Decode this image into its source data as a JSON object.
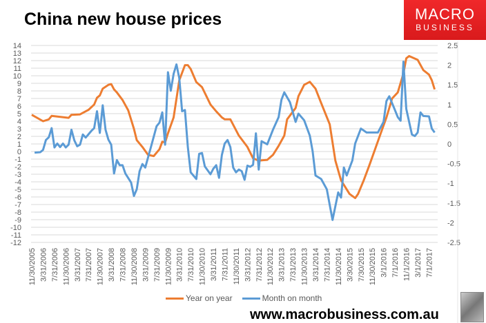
{
  "chart_data": {
    "type": "line",
    "title": "China new house prices",
    "y_left": {
      "min": -12,
      "max": 14,
      "step": 1
    },
    "y_right": {
      "min": -2.5,
      "max": 2.5,
      "step": 0.5
    },
    "grid": true,
    "legend_position": "bottom",
    "x_tick_labels": [
      "11/30/2005",
      "3/31/2006",
      "7/31/2006",
      "11/30/2006",
      "3/31/2007",
      "7/31/2007",
      "11/30/2007",
      "3/31/2008",
      "7/31/2008",
      "11/30/2008",
      "3/31/2009",
      "7/31/2009",
      "11/30/2009",
      "3/31/2010",
      "7/31/2010",
      "11/30/2010",
      "3/31/2011",
      "7/31/2011",
      "11/30/2011",
      "3/31/2012",
      "7/31/2012",
      "11/30/2012",
      "3/31/2013",
      "7/31/2013",
      "11/30/2013",
      "3/31/2014",
      "7/31/2014",
      "11/30/2014",
      "3/30/2015",
      "7/30/2015",
      "11/30/2015",
      "3/1/2016",
      "7/1/2016",
      "11/1/2016",
      "3/1/2017",
      "7/1/2017"
    ],
    "series": [
      {
        "name": "Year on year",
        "axis": "left",
        "color": "#ed7d31",
        "points": [
          [
            "2005-11",
            4.85
          ],
          [
            "2006-03",
            4.0
          ],
          [
            "2006-05",
            4.25
          ],
          [
            "2006-06",
            4.7
          ],
          [
            "2006-12",
            4.45
          ],
          [
            "2007-01",
            4.85
          ],
          [
            "2007-04",
            4.9
          ],
          [
            "2007-07",
            5.5
          ],
          [
            "2007-09",
            6.2
          ],
          [
            "2007-10",
            7.1
          ],
          [
            "2007-11",
            7.4
          ],
          [
            "2007-12",
            8.3
          ],
          [
            "2008-02",
            8.8
          ],
          [
            "2008-03",
            8.9
          ],
          [
            "2008-04",
            8.2
          ],
          [
            "2008-05",
            7.8
          ],
          [
            "2008-07",
            6.8
          ],
          [
            "2008-09",
            5.45
          ],
          [
            "2008-11",
            3.0
          ],
          [
            "2008-12",
            1.5
          ],
          [
            "2009-02",
            0.6
          ],
          [
            "2009-04",
            -0.45
          ],
          [
            "2009-06",
            -0.6
          ],
          [
            "2009-08",
            0.3
          ],
          [
            "2009-09",
            1.3
          ],
          [
            "2009-10",
            1.2
          ],
          [
            "2009-11",
            2.4
          ],
          [
            "2010-01",
            4.5
          ],
          [
            "2010-03",
            9.4
          ],
          [
            "2010-05",
            11.4
          ],
          [
            "2010-06",
            11.4
          ],
          [
            "2010-07",
            10.9
          ],
          [
            "2010-09",
            9.15
          ],
          [
            "2010-11",
            8.5
          ],
          [
            "2011-02",
            6.2
          ],
          [
            "2011-04",
            5.3
          ],
          [
            "2011-06",
            4.5
          ],
          [
            "2011-07",
            4.25
          ],
          [
            "2011-09",
            4.25
          ],
          [
            "2011-12",
            2.1
          ],
          [
            "2012-03",
            0.6
          ],
          [
            "2012-05",
            -0.9
          ],
          [
            "2012-07",
            -1.2
          ],
          [
            "2012-10",
            -1.1
          ],
          [
            "2012-12",
            -0.45
          ],
          [
            "2013-02",
            0.75
          ],
          [
            "2013-04",
            2.1
          ],
          [
            "2013-05",
            4.25
          ],
          [
            "2013-08",
            5.75
          ],
          [
            "2013-09",
            7.3
          ],
          [
            "2013-11",
            8.8
          ],
          [
            "2014-01",
            9.2
          ],
          [
            "2014-03",
            8.3
          ],
          [
            "2014-05",
            6.4
          ],
          [
            "2014-08",
            3.6
          ],
          [
            "2014-10",
            -1.2
          ],
          [
            "2014-12",
            -3.8
          ],
          [
            "2015-03",
            -5.6
          ],
          [
            "2015-05",
            -6.15
          ],
          [
            "2015-06",
            -5.6
          ],
          [
            "2015-08",
            -3.8
          ],
          [
            "2015-10",
            -1.8
          ],
          [
            "2015-12",
            0.3
          ],
          [
            "2016-02",
            2.4
          ],
          [
            "2016-04",
            4.5
          ],
          [
            "2016-06",
            7.0
          ],
          [
            "2016-08",
            7.8
          ],
          [
            "2016-10",
            10.3
          ],
          [
            "2016-11",
            12.3
          ],
          [
            "2016-12",
            12.6
          ],
          [
            "2017-03",
            12.1
          ],
          [
            "2017-05",
            10.75
          ],
          [
            "2017-07",
            10.15
          ],
          [
            "2017-08",
            9.4
          ],
          [
            "2017-09",
            8.2
          ]
        ]
      },
      {
        "name": "Month on month",
        "axis": "right",
        "color": "#5b9bd5",
        "points": [
          [
            "2005-12",
            -0.22
          ],
          [
            "2006-02",
            -0.21
          ],
          [
            "2006-03",
            -0.15
          ],
          [
            "2006-04",
            0.1
          ],
          [
            "2006-05",
            0.17
          ],
          [
            "2006-06",
            0.4
          ],
          [
            "2006-07",
            -0.09
          ],
          [
            "2006-08",
            0.01
          ],
          [
            "2006-09",
            -0.08
          ],
          [
            "2006-10",
            0.01
          ],
          [
            "2006-11",
            -0.09
          ],
          [
            "2006-12",
            -0.02
          ],
          [
            "2007-01",
            0.36
          ],
          [
            "2007-02",
            0.09
          ],
          [
            "2007-03",
            -0.06
          ],
          [
            "2007-04",
            -0.02
          ],
          [
            "2007-05",
            0.24
          ],
          [
            "2007-06",
            0.16
          ],
          [
            "2007-08",
            0.33
          ],
          [
            "2007-09",
            0.4
          ],
          [
            "2007-10",
            0.83
          ],
          [
            "2007-11",
            0.28
          ],
          [
            "2007-12",
            0.98
          ],
          [
            "2008-01",
            0.36
          ],
          [
            "2008-02",
            0.11
          ],
          [
            "2008-03",
            -0.02
          ],
          [
            "2008-04",
            -0.75
          ],
          [
            "2008-05",
            -0.41
          ],
          [
            "2008-06",
            -0.54
          ],
          [
            "2008-07",
            -0.54
          ],
          [
            "2008-08",
            -0.75
          ],
          [
            "2008-10",
            -0.98
          ],
          [
            "2008-11",
            -1.32
          ],
          [
            "2008-12",
            -1.15
          ],
          [
            "2009-01",
            -0.69
          ],
          [
            "2009-02",
            -0.51
          ],
          [
            "2009-03",
            -0.6
          ],
          [
            "2009-05",
            -0.08
          ],
          [
            "2009-07",
            0.45
          ],
          [
            "2009-08",
            0.54
          ],
          [
            "2009-09",
            0.8
          ],
          [
            "2009-10",
            -0.02
          ],
          [
            "2009-11",
            1.82
          ],
          [
            "2009-12",
            1.35
          ],
          [
            "2010-01",
            1.78
          ],
          [
            "2010-02",
            2.02
          ],
          [
            "2010-03",
            1.67
          ],
          [
            "2010-04",
            0.83
          ],
          [
            "2010-05",
            0.86
          ],
          [
            "2010-06",
            -0.08
          ],
          [
            "2010-07",
            -0.72
          ],
          [
            "2010-09",
            -0.89
          ],
          [
            "2010-10",
            -0.25
          ],
          [
            "2010-11",
            -0.23
          ],
          [
            "2010-12",
            -0.57
          ],
          [
            "2011-02",
            -0.77
          ],
          [
            "2011-03",
            -0.63
          ],
          [
            "2011-04",
            -0.54
          ],
          [
            "2011-05",
            -0.86
          ],
          [
            "2011-06",
            -0.28
          ],
          [
            "2011-07",
            0.01
          ],
          [
            "2011-08",
            0.1
          ],
          [
            "2011-09",
            -0.08
          ],
          [
            "2011-10",
            -0.6
          ],
          [
            "2011-11",
            -0.72
          ],
          [
            "2011-12",
            -0.65
          ],
          [
            "2012-01",
            -0.69
          ],
          [
            "2012-02",
            -0.91
          ],
          [
            "2012-03",
            -0.55
          ],
          [
            "2012-04",
            -0.58
          ],
          [
            "2012-05",
            -0.53
          ],
          [
            "2012-06",
            0.27
          ],
          [
            "2012-07",
            -0.65
          ],
          [
            "2012-08",
            0.07
          ],
          [
            "2012-10",
            -0.01
          ],
          [
            "2012-12",
            0.36
          ],
          [
            "2013-02",
            0.68
          ],
          [
            "2013-03",
            1.12
          ],
          [
            "2013-04",
            1.31
          ],
          [
            "2013-06",
            1.06
          ],
          [
            "2013-08",
            0.56
          ],
          [
            "2013-09",
            0.77
          ],
          [
            "2013-11",
            0.6
          ],
          [
            "2014-01",
            0.21
          ],
          [
            "2014-02",
            -0.19
          ],
          [
            "2014-03",
            -0.8
          ],
          [
            "2014-05",
            -0.89
          ],
          [
            "2014-07",
            -1.15
          ],
          [
            "2014-09",
            -1.93
          ],
          [
            "2014-11",
            -1.23
          ],
          [
            "2014-12",
            -1.36
          ],
          [
            "2015-01",
            -0.6
          ],
          [
            "2015-02",
            -0.8
          ],
          [
            "2015-04",
            -0.42
          ],
          [
            "2015-05",
            0.01
          ],
          [
            "2015-07",
            0.39
          ],
          [
            "2015-09",
            0.29
          ],
          [
            "2016-01",
            0.29
          ],
          [
            "2016-03",
            0.56
          ],
          [
            "2016-04",
            1.09
          ],
          [
            "2016-05",
            1.21
          ],
          [
            "2016-07",
            0.86
          ],
          [
            "2016-08",
            0.68
          ],
          [
            "2016-09",
            0.59
          ],
          [
            "2016-10",
            2.09
          ],
          [
            "2016-11",
            0.89
          ],
          [
            "2017-01",
            0.24
          ],
          [
            "2017-02",
            0.2
          ],
          [
            "2017-03",
            0.29
          ],
          [
            "2017-04",
            0.8
          ],
          [
            "2017-05",
            0.71
          ],
          [
            "2017-07",
            0.7
          ],
          [
            "2017-08",
            0.39
          ],
          [
            "2017-09",
            0.29
          ]
        ]
      }
    ]
  },
  "logo": {
    "line1": "MACRO",
    "line2": "BUSINESS"
  },
  "footer": {
    "website": "www.macrobusiness.com.au"
  }
}
